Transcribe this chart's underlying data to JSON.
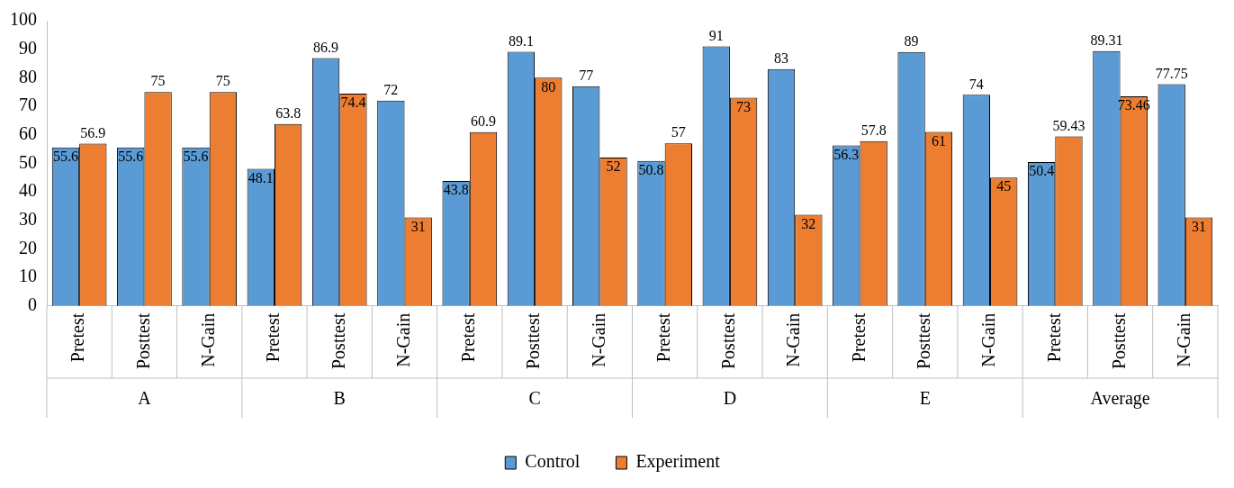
{
  "chart_data": {
    "type": "bar",
    "categories": [
      "Pretest",
      "Posttest",
      "N-Gain",
      "Pretest",
      "Posttest",
      "N-Gain",
      "Pretest",
      "Posttest",
      "N-Gain",
      "Pretest",
      "Posttest",
      "N-Gain",
      "Pretest",
      "Posttest",
      "N-Gain",
      "Pretest",
      "Posttest",
      "N-Gain"
    ],
    "annotations": [
      "A",
      "B",
      "C",
      "D",
      "E",
      "Average"
    ],
    "series": [
      {
        "name": "Control",
        "color": "#5b9bd5",
        "values": [
          55.6,
          55.6,
          55.6,
          48.1,
          86.9,
          72,
          43.8,
          89.1,
          77,
          50.8,
          91,
          83,
          56.3,
          89,
          74,
          50.4,
          89.31,
          77.75
        ]
      },
      {
        "name": "Experiment",
        "color": "#ed7d31",
        "values": [
          56.9,
          75,
          75,
          63.8,
          74.4,
          31,
          60.9,
          80,
          52,
          57,
          73,
          32,
          57.8,
          61,
          45,
          59.43,
          73.46,
          31
        ]
      }
    ],
    "ylim": [
      0,
      100
    ],
    "yticks": [
      0,
      10,
      20,
      30,
      40,
      50,
      60,
      70,
      80,
      90,
      100
    ],
    "data_labels": true,
    "legend": "bottom",
    "grid": false
  }
}
